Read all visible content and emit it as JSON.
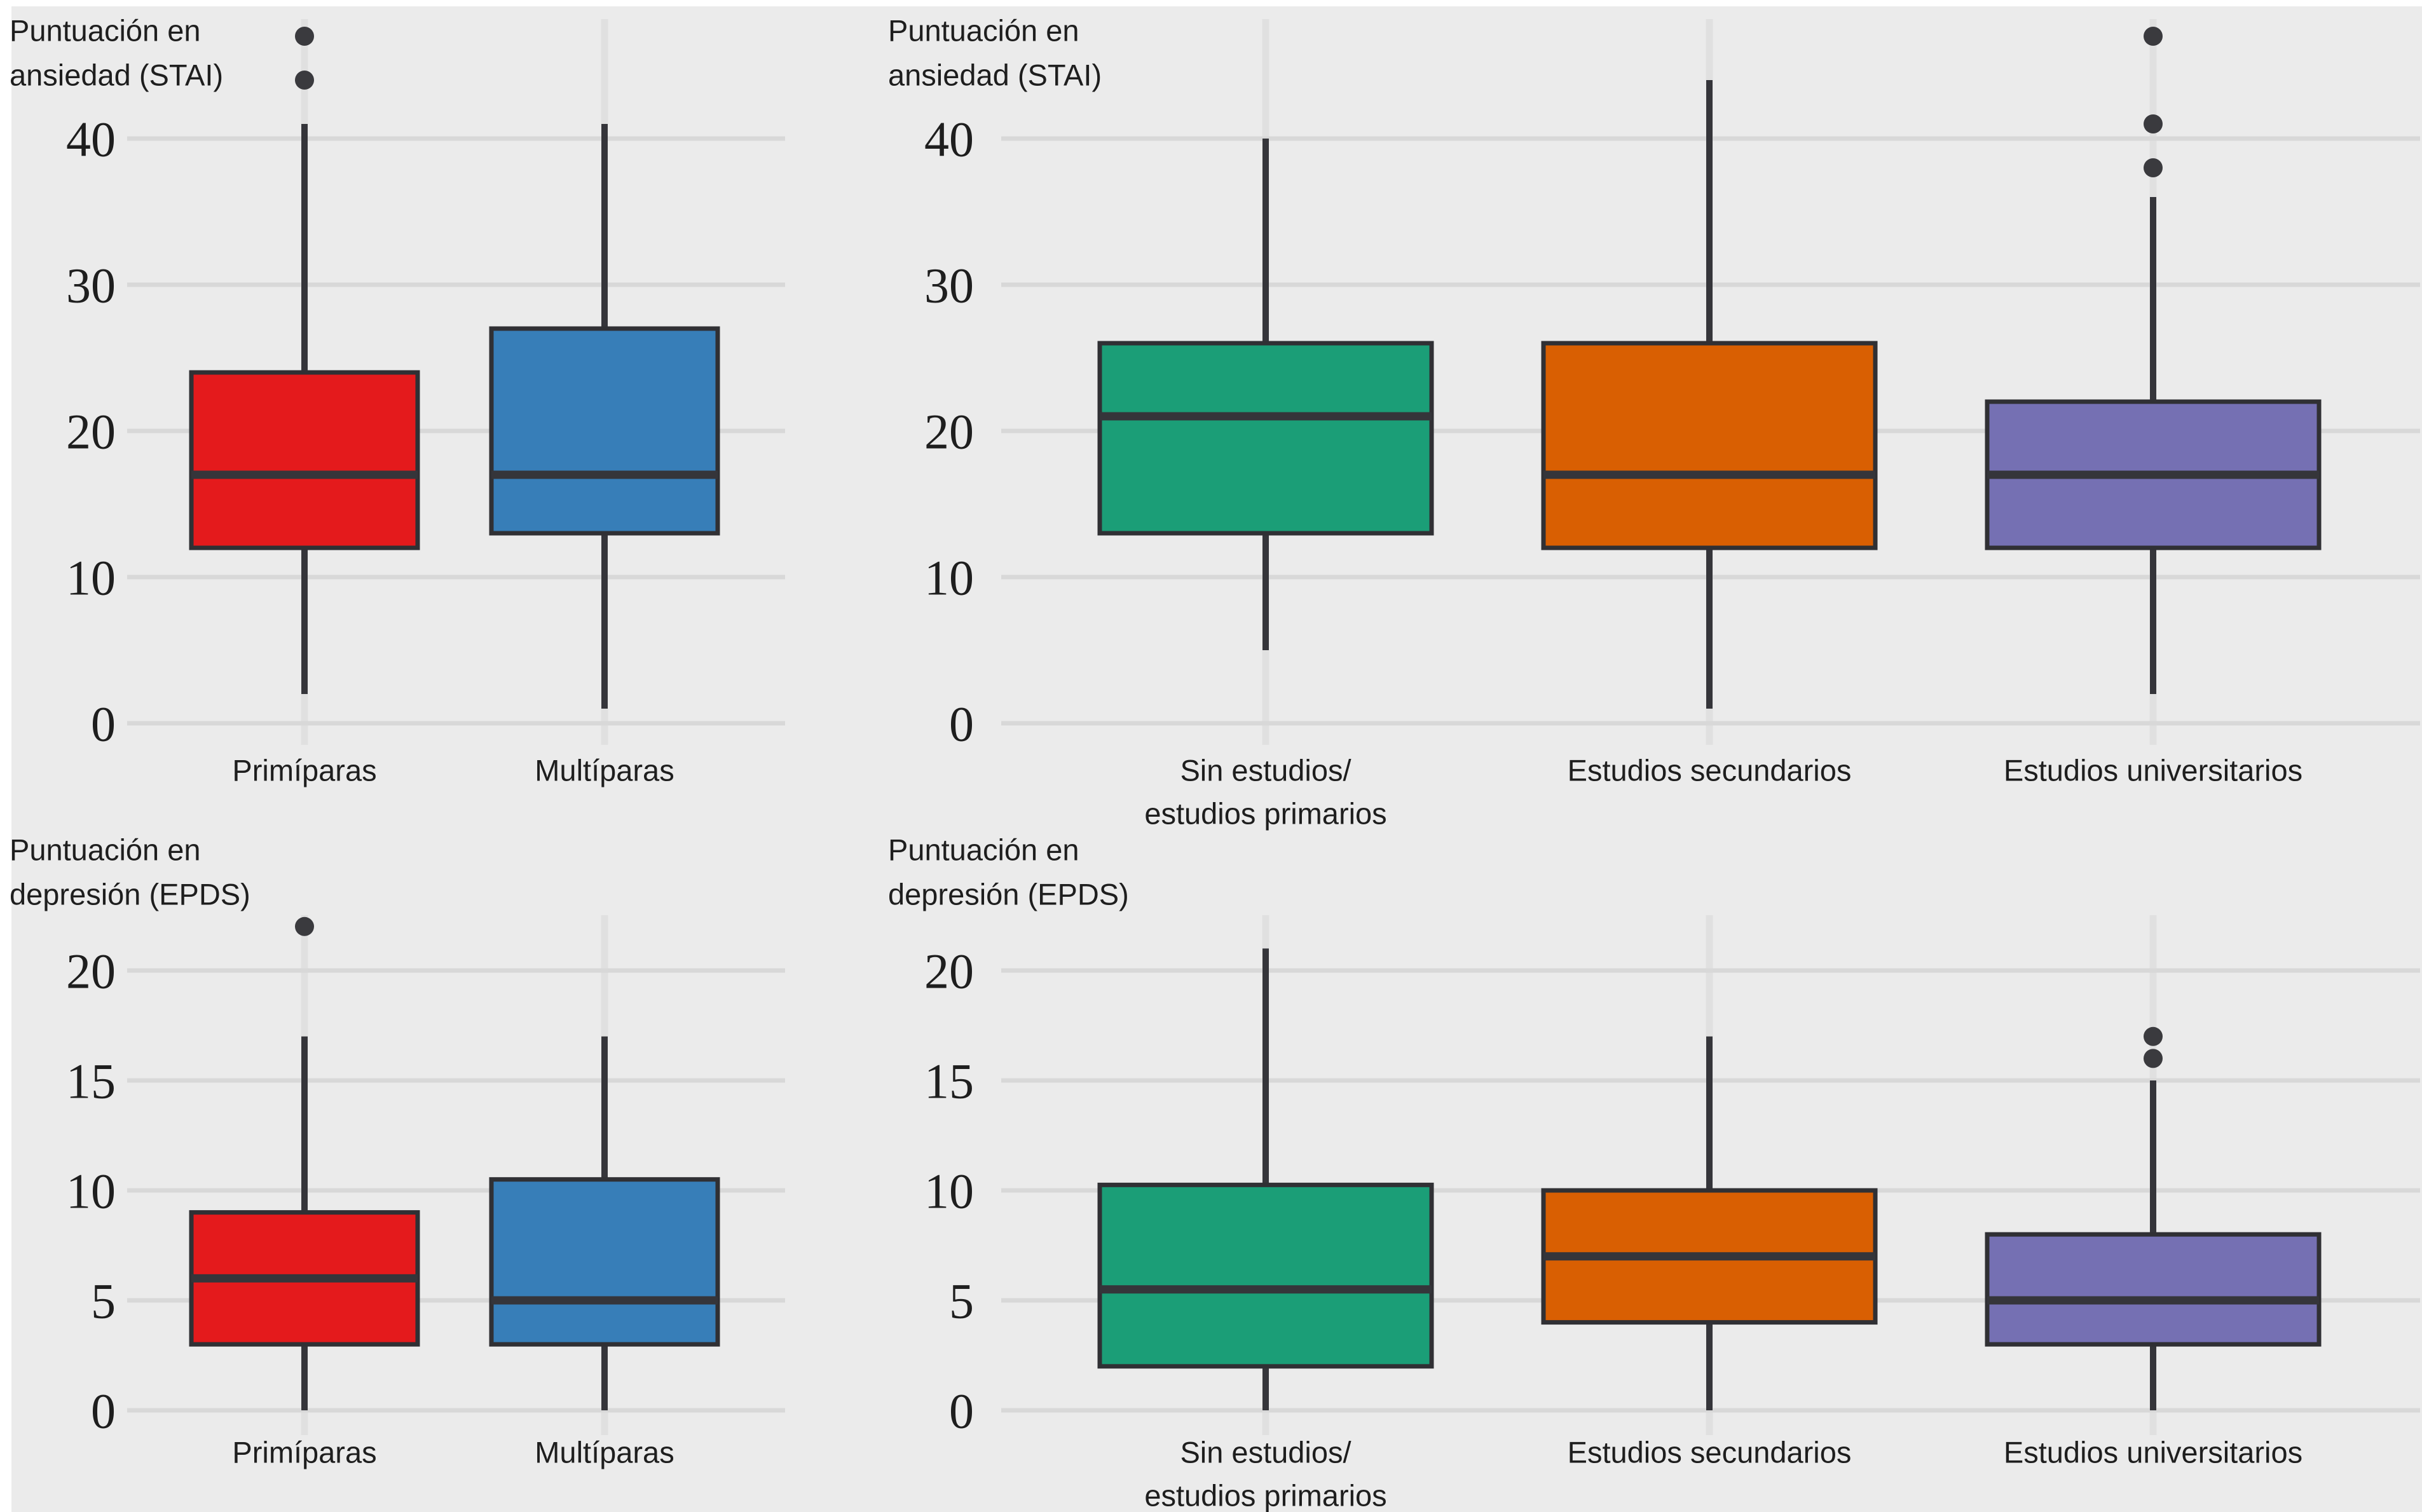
{
  "figure": {
    "background": "#EBEBEB",
    "margin_color": "#FFFFFF",
    "grid_h_color": "#D8D8D8",
    "grid_v_color": "#E0E0E0",
    "box_stroke_color": "#303034",
    "median_color": "#35353A",
    "whisker_color": "#35353A",
    "outlier_color": "#3A3A3E",
    "text_color": "#1E1E1E"
  },
  "chart_data": [
    {
      "type": "boxplot",
      "id": "stai-paridad",
      "row": 0,
      "col": 0,
      "title_lines": [
        "Puntuación en",
        "ansiedad (STAI)"
      ],
      "yticks": [
        0,
        10,
        20,
        30,
        40
      ],
      "ylim": [
        0,
        48
      ],
      "grid": true,
      "legend": "none",
      "categories": [
        {
          "label_lines": [
            "Primíparas"
          ]
        },
        {
          "label_lines": [
            "Multíparas"
          ]
        }
      ],
      "series": [
        {
          "name": "Primíparas",
          "color": "#E41A1C",
          "whisker_low": 2,
          "q1": 12,
          "median": 17,
          "q3": 24,
          "whisker_high": 41,
          "outliers": [
            44,
            47
          ]
        },
        {
          "name": "Multíparas",
          "color": "#377EB8",
          "whisker_low": 1,
          "q1": 13,
          "median": 17,
          "q3": 27,
          "whisker_high": 41,
          "outliers": []
        }
      ]
    },
    {
      "type": "boxplot",
      "id": "stai-estudios",
      "row": 0,
      "col": 1,
      "title_lines": [
        "Puntuación en",
        "ansiedad (STAI)"
      ],
      "yticks": [
        0,
        10,
        20,
        30,
        40
      ],
      "ylim": [
        0,
        48
      ],
      "grid": true,
      "legend": "none",
      "categories": [
        {
          "label_lines": [
            "Sin estudios/",
            "estudios primarios"
          ]
        },
        {
          "label_lines": [
            "Estudios secundarios"
          ]
        },
        {
          "label_lines": [
            "Estudios universitarios"
          ]
        }
      ],
      "series": [
        {
          "name": "Sin estudios/estudios primarios",
          "color": "#1B9E77",
          "whisker_low": 5,
          "q1": 13,
          "median": 21,
          "q3": 26,
          "whisker_high": 40,
          "outliers": []
        },
        {
          "name": "Estudios secundarios",
          "color": "#D95F02",
          "whisker_low": 1,
          "q1": 12,
          "median": 17,
          "q3": 26,
          "whisker_high": 44,
          "outliers": []
        },
        {
          "name": "Estudios universitarios",
          "color": "#7570B3",
          "whisker_low": 2,
          "q1": 12,
          "median": 17,
          "q3": 22,
          "whisker_high": 36,
          "outliers": [
            38,
            41,
            47
          ]
        }
      ]
    },
    {
      "type": "boxplot",
      "id": "epds-paridad",
      "row": 1,
      "col": 0,
      "title_lines": [
        "Puntuación en",
        "depresión (EPDS)"
      ],
      "yticks": [
        0,
        5,
        10,
        15,
        20
      ],
      "ylim": [
        0,
        22.4
      ],
      "grid": true,
      "legend": "none",
      "categories": [
        {
          "label_lines": [
            "Primíparas"
          ]
        },
        {
          "label_lines": [
            "Multíparas"
          ]
        }
      ],
      "series": [
        {
          "name": "Primíparas",
          "color": "#E41A1C",
          "whisker_low": 0,
          "q1": 3,
          "median": 6,
          "q3": 9,
          "whisker_high": 17,
          "outliers": [
            22
          ]
        },
        {
          "name": "Multíparas",
          "color": "#377EB8",
          "whisker_low": 0,
          "q1": 3,
          "median": 5,
          "q3": 10.5,
          "whisker_high": 17,
          "outliers": []
        }
      ]
    },
    {
      "type": "boxplot",
      "id": "epds-estudios",
      "row": 1,
      "col": 1,
      "title_lines": [
        "Puntuación en",
        "depresión (EPDS)"
      ],
      "yticks": [
        0,
        5,
        10,
        15,
        20
      ],
      "ylim": [
        0,
        22.4
      ],
      "grid": true,
      "legend": "none",
      "categories": [
        {
          "label_lines": [
            "Sin estudios/",
            "estudios primarios"
          ]
        },
        {
          "label_lines": [
            "Estudios secundarios"
          ]
        },
        {
          "label_lines": [
            "Estudios universitarios"
          ]
        }
      ],
      "series": [
        {
          "name": "Sin estudios/estudios primarios",
          "color": "#1B9E77",
          "whisker_low": 0,
          "q1": 2,
          "median": 5.5,
          "q3": 10.25,
          "whisker_high": 21,
          "outliers": []
        },
        {
          "name": "Estudios secundarios",
          "color": "#D95F02",
          "whisker_low": 0,
          "q1": 4,
          "median": 7,
          "q3": 10,
          "whisker_high": 17,
          "outliers": []
        },
        {
          "name": "Estudios universitarios",
          "color": "#7570B3",
          "whisker_low": 0,
          "q1": 3,
          "median": 5,
          "q3": 8,
          "whisker_high": 15,
          "outliers": [
            16,
            17
          ]
        }
      ]
    }
  ]
}
